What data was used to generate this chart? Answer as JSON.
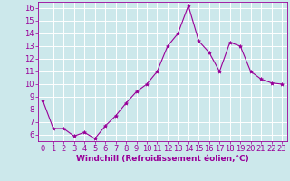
{
  "x": [
    0,
    1,
    2,
    3,
    4,
    5,
    6,
    7,
    8,
    9,
    10,
    11,
    12,
    13,
    14,
    15,
    16,
    17,
    18,
    19,
    20,
    21,
    22,
    23
  ],
  "y": [
    8.7,
    6.5,
    6.5,
    5.9,
    6.2,
    5.7,
    6.7,
    7.5,
    8.5,
    9.4,
    10.0,
    11.0,
    13.0,
    14.0,
    16.2,
    13.4,
    12.5,
    11.0,
    13.3,
    13.0,
    11.0,
    10.4,
    10.1,
    10.0
  ],
  "line_color": "#990099",
  "marker": "*",
  "marker_size": 3,
  "background_color": "#cce8eb",
  "grid_color": "#ffffff",
  "xlabel": "Windchill (Refroidissement éolien,°C)",
  "xlabel_fontsize": 6.5,
  "tick_fontsize": 6.0,
  "ylim": [
    5.5,
    16.5
  ],
  "xlim": [
    -0.5,
    23.5
  ],
  "yticks": [
    6,
    7,
    8,
    9,
    10,
    11,
    12,
    13,
    14,
    15,
    16
  ],
  "xticks": [
    0,
    1,
    2,
    3,
    4,
    5,
    6,
    7,
    8,
    9,
    10,
    11,
    12,
    13,
    14,
    15,
    16,
    17,
    18,
    19,
    20,
    21,
    22,
    23
  ]
}
